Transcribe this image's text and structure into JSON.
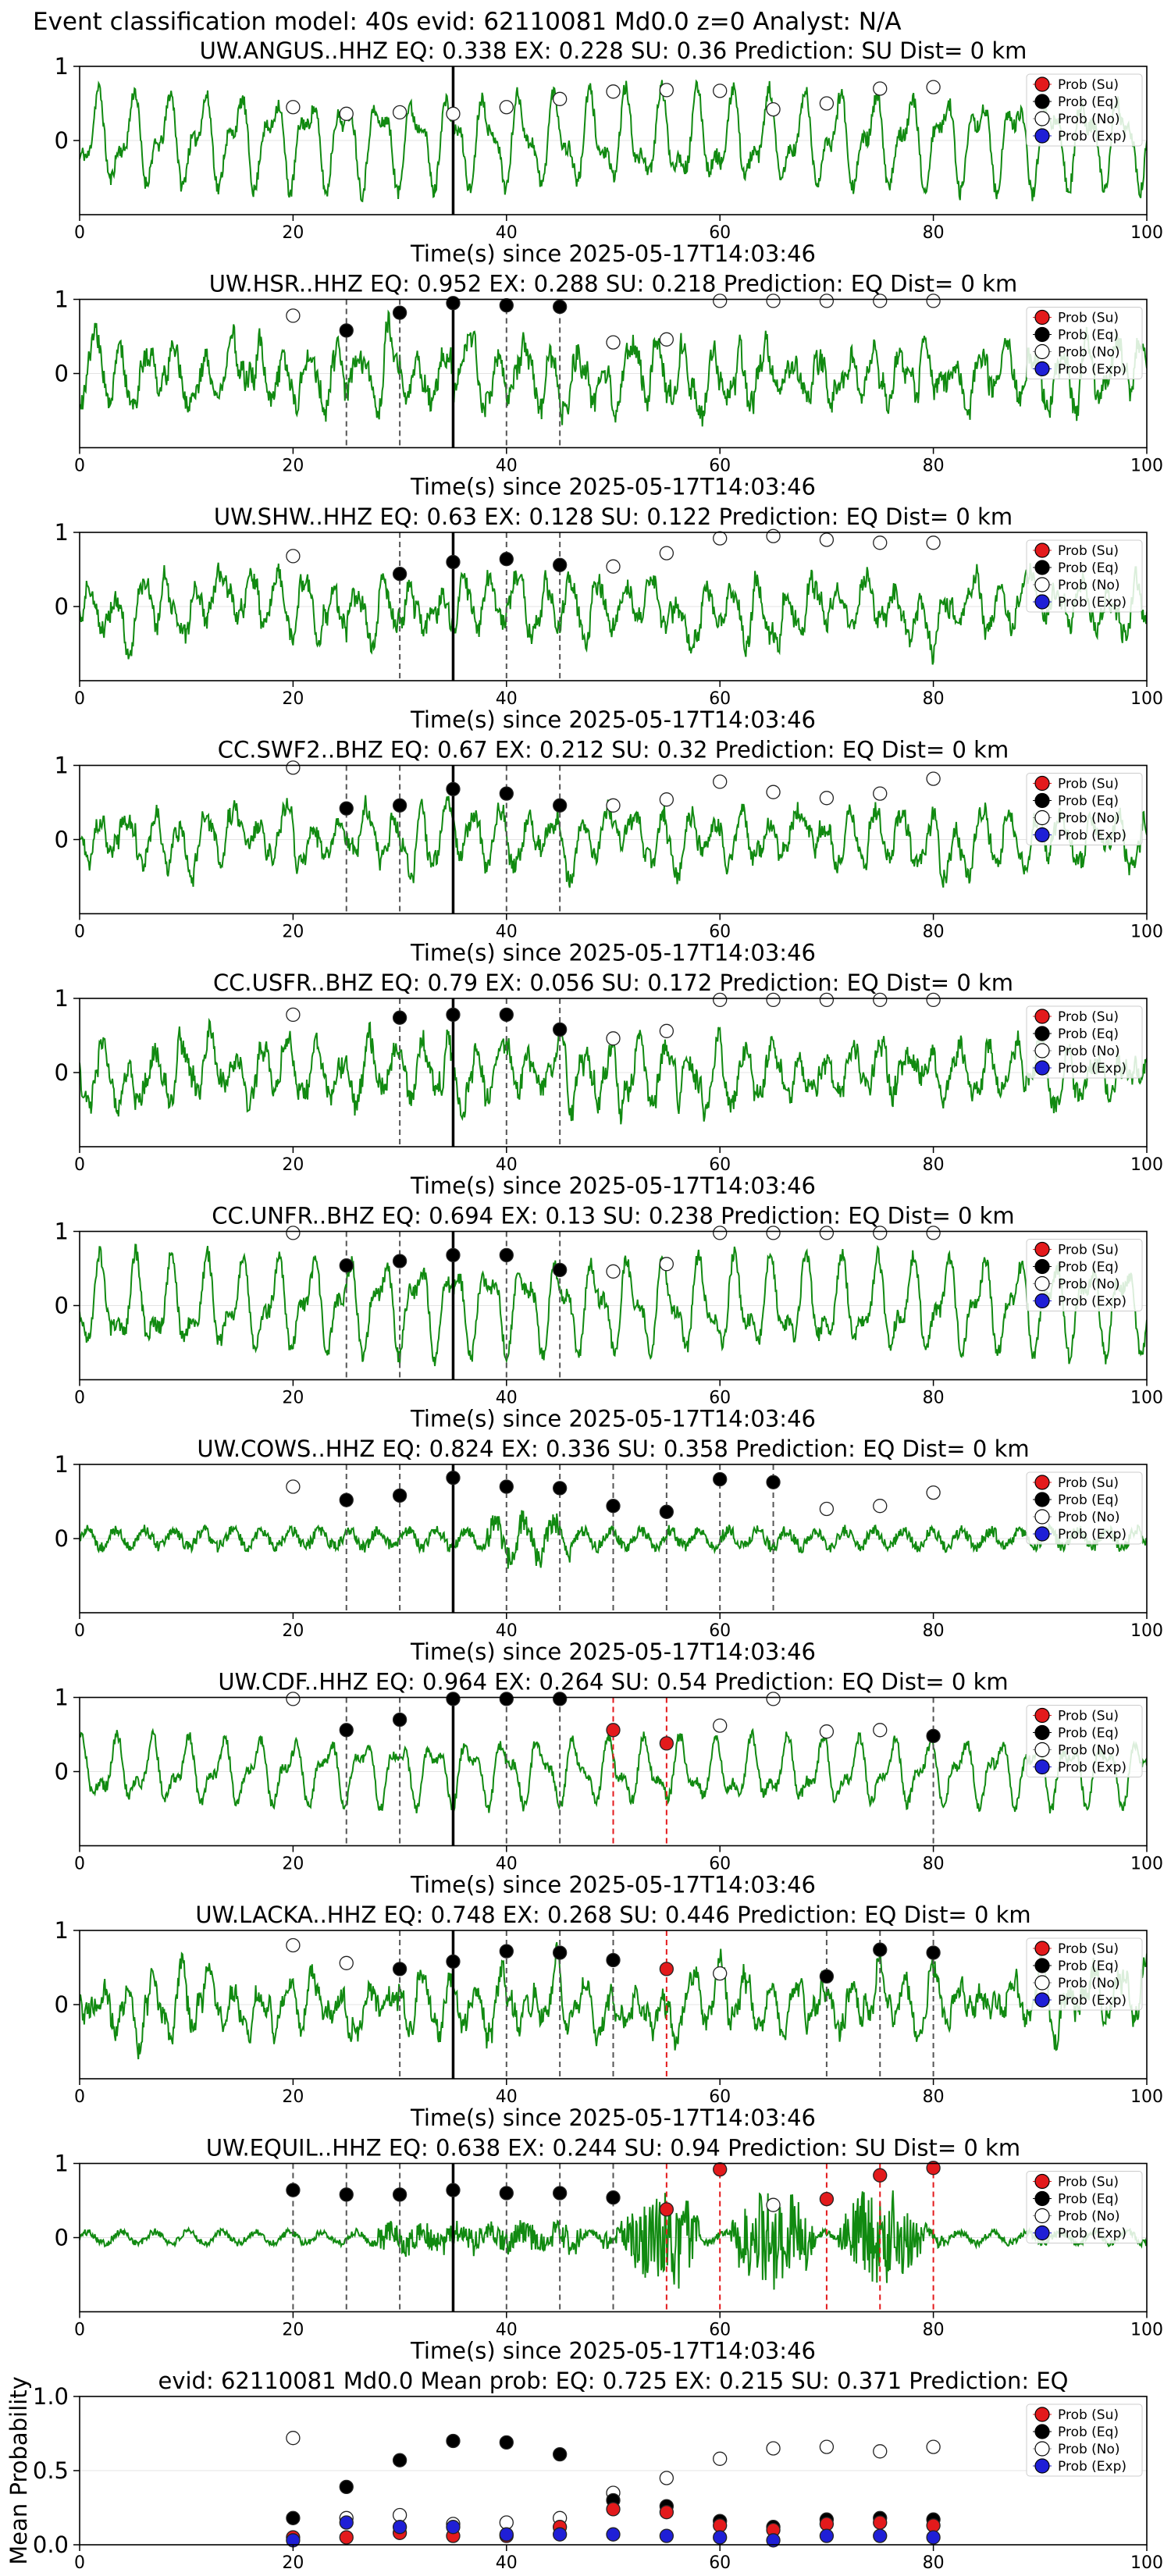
{
  "figure_title": "Event classification model: 40s evid: 62110081 Md0.0 z=0 Analyst: N/A",
  "legend_labels": [
    "Prob (Su)",
    "Prob (Eq)",
    "Prob (No)",
    "Prob (Exp)"
  ],
  "colors": {
    "su": "#e31a1c",
    "eq": "#000000",
    "no": "#ffffff",
    "exp": "#1f1fd6",
    "trace": "#118a11",
    "red_line": "#e31a1c"
  },
  "chart_data": [
    {
      "type": "line",
      "station": "UW.ANGUS..HHZ",
      "title": "UW.ANGUS..HHZ   EQ: 0.338  EX: 0.228  SU: 0.36   Prediction: SU    Dist= 0 km",
      "xlabel": "Time(s) since 2025-05-17T14:03:46",
      "xlim": [
        0,
        100
      ],
      "ylim": [
        -1,
        1
      ],
      "xticks": [
        0,
        20,
        40,
        60,
        80,
        100
      ],
      "yticks": [
        0,
        1
      ],
      "event_time": 35,
      "trace_seed": 11,
      "trace_style": "oscillatory",
      "trace_amp": 0.85,
      "prob_x": [
        20,
        25,
        30,
        35,
        40,
        45,
        50,
        55,
        60,
        65,
        70,
        75,
        80
      ],
      "prob_no": [
        0.45,
        0.36,
        0.38,
        0.36,
        0.45,
        0.56,
        0.66,
        0.68,
        0.67,
        0.42,
        0.5,
        0.7,
        0.72
      ],
      "prob_eq": [],
      "prob_su": [],
      "eq_markers": [],
      "su_markers": []
    },
    {
      "type": "line",
      "station": "UW.HSR..HHZ",
      "title": "UW.HSR..HHZ   EQ: 0.952  EX: 0.288  SU: 0.218   Prediction: EQ    Dist= 0 km",
      "xlabel": "Time(s) since 2025-05-17T14:03:46",
      "xlim": [
        0,
        100
      ],
      "ylim": [
        -1,
        1
      ],
      "xticks": [
        0,
        20,
        40,
        60,
        80,
        100
      ],
      "yticks": [
        0,
        1
      ],
      "event_time": 35,
      "trace_seed": 23,
      "trace_style": "noisy",
      "trace_amp": 0.9,
      "prob_x": [
        20,
        25,
        30,
        35,
        40,
        45,
        50,
        55,
        60,
        65,
        70,
        75,
        80
      ],
      "prob_no": [
        0.78,
        null,
        null,
        null,
        null,
        null,
        0.42,
        0.46,
        0.98,
        0.98,
        0.98,
        0.98,
        0.98
      ],
      "prob_eq": [
        null,
        0.58,
        0.82,
        0.95,
        0.92,
        0.9,
        null,
        null,
        null,
        null,
        null,
        null,
        null
      ],
      "prob_su": [],
      "eq_markers": [
        25,
        30,
        40,
        45
      ],
      "su_markers": []
    },
    {
      "type": "line",
      "station": "UW.SHW..HHZ",
      "title": "UW.SHW..HHZ   EQ: 0.63  EX: 0.128  SU: 0.122   Prediction: EQ    Dist= 0 km",
      "xlabel": "Time(s) since 2025-05-17T14:03:46",
      "xlim": [
        0,
        100
      ],
      "ylim": [
        -1,
        1
      ],
      "xticks": [
        0,
        20,
        40,
        60,
        80,
        100
      ],
      "yticks": [
        0,
        1
      ],
      "event_time": 35,
      "trace_seed": 37,
      "trace_style": "noisy",
      "trace_amp": 0.8,
      "prob_x": [
        20,
        25,
        30,
        35,
        40,
        45,
        50,
        55,
        60,
        65,
        70,
        75,
        80
      ],
      "prob_no": [
        0.68,
        null,
        null,
        null,
        null,
        null,
        0.54,
        0.72,
        0.92,
        0.95,
        0.9,
        0.86,
        0.86
      ],
      "prob_eq": [
        null,
        null,
        0.44,
        0.6,
        0.64,
        0.56,
        null,
        null,
        null,
        null,
        null,
        null,
        null
      ],
      "prob_su": [],
      "eq_markers": [
        30,
        40,
        45
      ],
      "su_markers": []
    },
    {
      "type": "line",
      "station": "CC.SWF2..BHZ",
      "title": "CC.SWF2..BHZ   EQ: 0.67  EX: 0.212  SU: 0.32   Prediction: EQ    Dist= 0 km",
      "xlabel": "Time(s) since 2025-05-17T14:03:46",
      "xlim": [
        0,
        100
      ],
      "ylim": [
        -1,
        1
      ],
      "xticks": [
        0,
        20,
        40,
        60,
        80,
        100
      ],
      "yticks": [
        0,
        1
      ],
      "event_time": 35,
      "trace_seed": 41,
      "trace_style": "noisy",
      "trace_amp": 0.75,
      "prob_x": [
        20,
        25,
        30,
        35,
        40,
        45,
        50,
        55,
        60,
        65,
        70,
        75,
        80
      ],
      "prob_no": [
        0.97,
        null,
        null,
        null,
        null,
        null,
        0.46,
        0.54,
        0.78,
        0.64,
        0.56,
        0.62,
        0.82
      ],
      "prob_eq": [
        null,
        0.42,
        0.46,
        0.68,
        0.62,
        0.46,
        null,
        null,
        null,
        null,
        null,
        null,
        null
      ],
      "prob_su": [],
      "eq_markers": [
        25,
        30,
        40,
        45
      ],
      "su_markers": []
    },
    {
      "type": "line",
      "station": "CC.USFR..BHZ",
      "title": "CC.USFR..BHZ   EQ: 0.79  EX: 0.056  SU: 0.172   Prediction: EQ    Dist= 0 km",
      "xlabel": "Time(s) since 2025-05-17T14:03:46",
      "xlim": [
        0,
        100
      ],
      "ylim": [
        -1,
        1
      ],
      "xticks": [
        0,
        20,
        40,
        60,
        80,
        100
      ],
      "yticks": [
        0,
        1
      ],
      "event_time": 35,
      "trace_seed": 53,
      "trace_style": "noisy",
      "trace_amp": 0.85,
      "prob_x": [
        20,
        25,
        30,
        35,
        40,
        45,
        50,
        55,
        60,
        65,
        70,
        75,
        80
      ],
      "prob_no": [
        0.78,
        null,
        null,
        null,
        null,
        null,
        0.46,
        0.56,
        0.98,
        0.98,
        0.98,
        0.98,
        0.98
      ],
      "prob_eq": [
        null,
        null,
        0.74,
        0.78,
        0.78,
        0.58,
        null,
        null,
        null,
        null,
        null,
        null,
        null
      ],
      "prob_su": [],
      "eq_markers": [
        30,
        40,
        45
      ],
      "su_markers": []
    },
    {
      "type": "line",
      "station": "CC.UNFR..BHZ",
      "title": "CC.UNFR..BHZ   EQ: 0.694  EX: 0.13  SU: 0.238   Prediction: EQ    Dist= 0 km",
      "xlabel": "Time(s) since 2025-05-17T14:03:46",
      "xlim": [
        0,
        100
      ],
      "ylim": [
        -1,
        1
      ],
      "xticks": [
        0,
        20,
        40,
        60,
        80,
        100
      ],
      "yticks": [
        0,
        1
      ],
      "event_time": 35,
      "trace_seed": 67,
      "trace_style": "oscillatory",
      "trace_amp": 0.85,
      "prob_x": [
        20,
        25,
        30,
        35,
        40,
        45,
        50,
        55,
        60,
        65,
        70,
        75,
        80
      ],
      "prob_no": [
        0.98,
        null,
        null,
        null,
        null,
        null,
        0.46,
        0.56,
        0.98,
        0.98,
        0.98,
        0.98,
        0.98
      ],
      "prob_eq": [
        null,
        0.54,
        0.6,
        0.68,
        0.68,
        0.48,
        null,
        null,
        null,
        null,
        null,
        null,
        null
      ],
      "prob_su": [],
      "eq_markers": [
        25,
        30,
        40,
        45
      ],
      "su_markers": []
    },
    {
      "type": "line",
      "station": "UW.COWS..HHZ",
      "title": "UW.COWS..HHZ   EQ: 0.824  EX: 0.336  SU: 0.358   Prediction: EQ    Dist= 0 km",
      "xlabel": "Time(s) since 2025-05-17T14:03:46",
      "xlim": [
        0,
        100
      ],
      "ylim": [
        -1,
        1
      ],
      "xticks": [
        0,
        20,
        40,
        60,
        80,
        100
      ],
      "yticks": [
        0,
        1
      ],
      "event_time": 35,
      "trace_seed": 71,
      "trace_style": "quiet",
      "trace_amp": 0.45,
      "prob_x": [
        20,
        25,
        30,
        35,
        40,
        45,
        50,
        55,
        60,
        65,
        70,
        75,
        80
      ],
      "prob_no": [
        0.7,
        null,
        null,
        null,
        null,
        null,
        null,
        null,
        null,
        null,
        0.4,
        0.44,
        0.62
      ],
      "prob_eq": [
        null,
        0.52,
        0.58,
        0.82,
        0.7,
        0.68,
        0.44,
        0.36,
        0.8,
        0.76,
        null,
        null,
        null
      ],
      "prob_su": [],
      "eq_markers": [
        25,
        30,
        40,
        45,
        50,
        55,
        60,
        65
      ],
      "su_markers": []
    },
    {
      "type": "line",
      "station": "UW.CDF..HHZ",
      "title": "UW.CDF..HHZ   EQ: 0.964  EX: 0.264  SU: 0.54   Prediction: EQ    Dist= 0 km",
      "xlabel": "Time(s) since 2025-05-17T14:03:46",
      "xlim": [
        0,
        100
      ],
      "ylim": [
        -1,
        1
      ],
      "xticks": [
        0,
        20,
        40,
        60,
        80,
        100
      ],
      "yticks": [
        0,
        1
      ],
      "event_time": 35,
      "trace_seed": 83,
      "trace_style": "oscillatory",
      "trace_amp": 0.6,
      "prob_x": [
        20,
        25,
        30,
        35,
        40,
        45,
        50,
        55,
        60,
        65,
        70,
        75,
        80
      ],
      "prob_no": [
        0.98,
        null,
        null,
        null,
        null,
        null,
        null,
        null,
        0.62,
        0.98,
        0.54,
        0.56,
        null
      ],
      "prob_eq": [
        null,
        0.56,
        0.7,
        0.98,
        0.98,
        0.98,
        null,
        null,
        null,
        null,
        null,
        null,
        0.48
      ],
      "prob_su": [
        null,
        null,
        null,
        null,
        null,
        null,
        0.56,
        0.38,
        null,
        null,
        null,
        null,
        null
      ],
      "eq_markers": [
        25,
        30,
        40,
        45,
        80
      ],
      "su_markers": [
        50,
        55
      ]
    },
    {
      "type": "line",
      "station": "UW.LACKA..HHZ",
      "title": "UW.LACKA..HHZ   EQ: 0.748  EX: 0.268  SU: 0.446   Prediction: EQ    Dist= 0 km",
      "xlabel": "Time(s) since 2025-05-17T14:03:46",
      "xlim": [
        0,
        100
      ],
      "ylim": [
        -1,
        1
      ],
      "xticks": [
        0,
        20,
        40,
        60,
        80,
        100
      ],
      "yticks": [
        0,
        1
      ],
      "event_time": 35,
      "trace_seed": 97,
      "trace_style": "noisy",
      "trace_amp": 0.85,
      "prob_x": [
        20,
        25,
        30,
        35,
        40,
        45,
        50,
        55,
        60,
        65,
        70,
        75,
        80
      ],
      "prob_no": [
        0.8,
        0.56,
        null,
        null,
        null,
        null,
        null,
        null,
        0.42,
        null,
        null,
        null,
        null
      ],
      "prob_eq": [
        null,
        null,
        0.48,
        0.58,
        0.72,
        0.7,
        0.6,
        null,
        null,
        null,
        0.38,
        0.74,
        0.7
      ],
      "prob_su": [
        null,
        null,
        null,
        null,
        null,
        null,
        null,
        0.48,
        null,
        null,
        null,
        null,
        null
      ],
      "eq_markers": [
        30,
        40,
        45,
        50,
        70,
        75,
        80
      ],
      "su_markers": [
        55
      ]
    },
    {
      "type": "line",
      "station": "UW.EQUIL..HHZ",
      "title": "UW.EQUIL..HHZ   EQ: 0.638  EX: 0.244  SU: 0.94   Prediction: SU    Dist= 0 km",
      "xlabel": "Time(s) since 2025-05-17T14:03:46",
      "xlim": [
        0,
        100
      ],
      "ylim": [
        -1,
        1
      ],
      "xticks": [
        0,
        20,
        40,
        60,
        80,
        100
      ],
      "yticks": [
        0,
        1
      ],
      "event_time": 35,
      "trace_seed": 101,
      "trace_style": "bursty",
      "trace_amp": 0.95,
      "prob_x": [
        20,
        25,
        30,
        35,
        40,
        45,
        50,
        55,
        60,
        65,
        70,
        75,
        80
      ],
      "prob_no": [
        null,
        null,
        null,
        null,
        null,
        null,
        null,
        null,
        null,
        0.44,
        null,
        null,
        null
      ],
      "prob_eq": [
        0.64,
        0.58,
        0.58,
        0.64,
        0.6,
        0.6,
        0.54,
        null,
        null,
        null,
        null,
        null,
        null
      ],
      "prob_su": [
        null,
        null,
        null,
        null,
        null,
        null,
        null,
        0.38,
        0.92,
        null,
        0.52,
        0.84,
        0.94
      ],
      "eq_markers": [
        20,
        25,
        30,
        40,
        45,
        50
      ],
      "su_markers": [
        55,
        60,
        70,
        75,
        80
      ]
    },
    {
      "type": "scatter",
      "station": "mean",
      "title": "evid: 62110081  Md0.0   Mean prob:   EQ: 0.725  EX: 0.215  SU: 0.371   Prediction: EQ",
      "ylabel": "Mean Probability",
      "xlim": [
        0,
        100
      ],
      "ylim": [
        0,
        1
      ],
      "xticks": [
        0,
        20,
        40,
        60,
        80,
        100
      ],
      "yticks": [
        0.0,
        0.5,
        1.0
      ],
      "x": [
        20,
        25,
        30,
        35,
        40,
        45,
        50,
        55,
        60,
        65,
        70,
        75,
        80
      ],
      "series": [
        {
          "name": "Prob (No)",
          "key": "no",
          "values": [
            0.72,
            0.18,
            0.2,
            0.14,
            0.15,
            0.18,
            0.35,
            0.45,
            0.58,
            0.65,
            0.66,
            0.63,
            0.66
          ]
        },
        {
          "name": "Prob (Eq)",
          "key": "eq",
          "values": [
            0.18,
            0.39,
            0.57,
            0.7,
            0.69,
            0.61,
            0.3,
            0.26,
            0.16,
            0.12,
            0.17,
            0.18,
            0.17
          ]
        },
        {
          "name": "Prob (Su)",
          "key": "su",
          "values": [
            0.05,
            0.05,
            0.08,
            0.06,
            0.06,
            0.12,
            0.24,
            0.22,
            0.13,
            0.1,
            0.14,
            0.15,
            0.13
          ]
        },
        {
          "name": "Prob (Exp)",
          "key": "exp",
          "values": [
            0.03,
            0.15,
            0.12,
            0.12,
            0.07,
            0.07,
            0.07,
            0.06,
            0.05,
            0.03,
            0.06,
            0.06,
            0.05
          ]
        }
      ]
    }
  ]
}
